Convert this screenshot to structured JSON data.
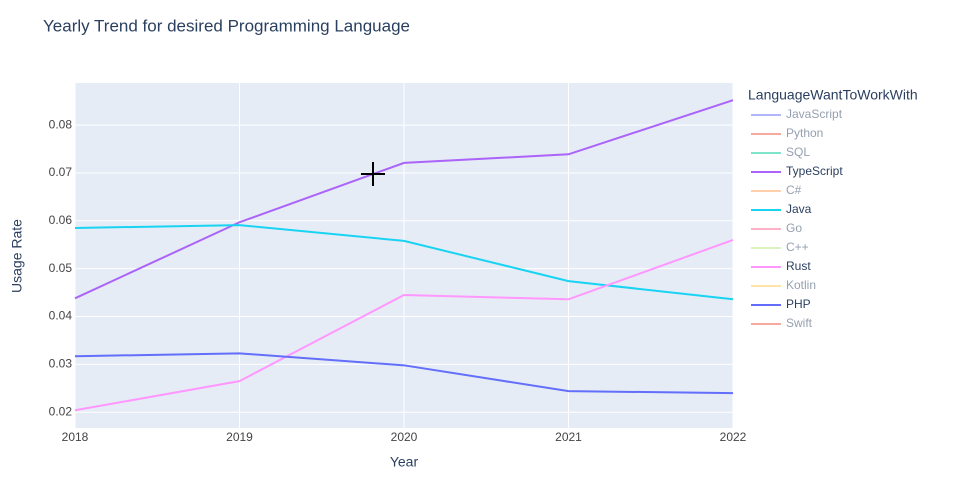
{
  "chart_data": {
    "type": "line",
    "title": "Yearly Trend for desired Programming Language",
    "xlabel": "Year",
    "ylabel": "Usage Rate",
    "legend_title": "LanguageWantToWorkWith",
    "x": [
      2018,
      2019,
      2020,
      2021,
      2022
    ],
    "xlim": [
      2018,
      2022
    ],
    "xticks": [
      2018,
      2019,
      2020,
      2021,
      2022
    ],
    "ylim": [
      0.0167,
      0.0888
    ],
    "yticks": [
      0.02,
      0.03,
      0.04,
      0.05,
      0.06,
      0.07,
      0.08
    ],
    "grid": true,
    "legend": "right",
    "series": [
      {
        "name": "JavaScript",
        "color": "#636efa",
        "visible": "legendonly",
        "values": [
          null,
          null,
          null,
          null,
          null
        ]
      },
      {
        "name": "Python",
        "color": "#EF553B",
        "visible": "legendonly",
        "values": [
          null,
          null,
          null,
          null,
          null
        ]
      },
      {
        "name": "SQL",
        "color": "#00cc96",
        "visible": "legendonly",
        "values": [
          null,
          null,
          null,
          null,
          null
        ]
      },
      {
        "name": "TypeScript",
        "color": "#ab63fa",
        "visible": true,
        "values": [
          0.0438,
          0.0597,
          0.0721,
          0.0739,
          0.0852
        ]
      },
      {
        "name": "C#",
        "color": "#FFA15A",
        "visible": "legendonly",
        "values": [
          null,
          null,
          null,
          null,
          null
        ]
      },
      {
        "name": "Java",
        "color": "#19d3f3",
        "visible": true,
        "values": [
          0.0585,
          0.0591,
          0.0558,
          0.0474,
          0.0436
        ]
      },
      {
        "name": "Go",
        "color": "#FF6692",
        "visible": "legendonly",
        "values": [
          null,
          null,
          null,
          null,
          null
        ]
      },
      {
        "name": "C++",
        "color": "#B6E880",
        "visible": "legendonly",
        "values": [
          null,
          null,
          null,
          null,
          null
        ]
      },
      {
        "name": "Rust",
        "color": "#FF97FF",
        "visible": true,
        "values": [
          0.0204,
          0.0265,
          0.0445,
          0.0436,
          0.056
        ]
      },
      {
        "name": "Kotlin",
        "color": "#FECB52",
        "visible": "legendonly",
        "values": [
          null,
          null,
          null,
          null,
          null
        ]
      },
      {
        "name": "PHP",
        "color": "#636efa",
        "visible": true,
        "values": [
          0.0317,
          0.0323,
          0.0298,
          0.0244,
          0.024
        ]
      },
      {
        "name": "Swift",
        "color": "#EF553B",
        "visible": "legendonly",
        "values": [
          null,
          null,
          null,
          null,
          null
        ]
      }
    ]
  }
}
